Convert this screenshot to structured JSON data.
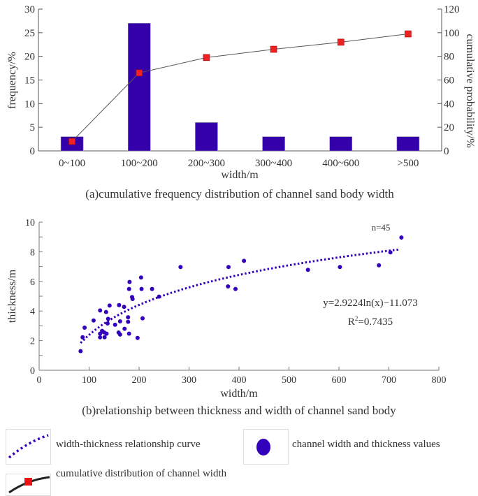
{
  "chart_data": [
    {
      "type": "bar",
      "caption": "(a)cumulative frequency distribution of channel sand body width",
      "xlabel": "width/m",
      "ylabel": "frequency/%",
      "y2label": "cumulative probability/%",
      "categories": [
        "0~100",
        "100~200",
        "200~300",
        "300~400",
        "400~600",
        ">500"
      ],
      "ylim": [
        0,
        30
      ],
      "yticks": [
        0,
        5,
        10,
        15,
        20,
        25,
        30
      ],
      "y2lim": [
        0,
        120
      ],
      "y2ticks": [
        0,
        20,
        40,
        60,
        80,
        100,
        120
      ],
      "series": [
        {
          "kind": "bar",
          "axis": "left",
          "values": [
            3,
            27,
            6,
            3,
            3,
            3
          ],
          "color": "#3300aa"
        },
        {
          "kind": "line",
          "axis": "right",
          "values": [
            8,
            66,
            79,
            86,
            92,
            99
          ],
          "color": "#ee2222"
        }
      ]
    },
    {
      "type": "scatter",
      "caption": "(b)relationship between thickness and width of channel sand body",
      "xlabel": "width/m",
      "ylabel": "thickness/m",
      "xlim": [
        0,
        800
      ],
      "ylim": [
        0,
        10
      ],
      "xticks": [
        0,
        100,
        200,
        300,
        400,
        500,
        600,
        700,
        800
      ],
      "yticks": [
        0,
        2,
        4,
        6,
        8,
        10
      ],
      "color": "#3300bb",
      "annotation_n": "n=45",
      "equation": "y=2.9224ln(x)−11.073",
      "r2_prefix": "R",
      "r2_sup": "2",
      "r2_value": "=0.7435",
      "fit": {
        "a": 2.9224,
        "b": -11.073,
        "xrange": [
          83,
          725
        ]
      },
      "points": [
        [
          83,
          1.29
        ],
        [
          87,
          2.23
        ],
        [
          91,
          2.88
        ],
        [
          109,
          3.36
        ],
        [
          122,
          4.04
        ],
        [
          141,
          4.37
        ],
        [
          134,
          3.93
        ],
        [
          138,
          3.47
        ],
        [
          137,
          3.16
        ],
        [
          126,
          2.66
        ],
        [
          130,
          2.56
        ],
        [
          135,
          2.47
        ],
        [
          122,
          2.47
        ],
        [
          122,
          2.22
        ],
        [
          131,
          2.23
        ],
        [
          152,
          3.07
        ],
        [
          160,
          4.4
        ],
        [
          170,
          4.28
        ],
        [
          162,
          3.3
        ],
        [
          159,
          2.55
        ],
        [
          162,
          2.41
        ],
        [
          171,
          2.8
        ],
        [
          178,
          3.58
        ],
        [
          178,
          3.27
        ],
        [
          180,
          2.47
        ],
        [
          181,
          5.96
        ],
        [
          180,
          5.49
        ],
        [
          186,
          4.94
        ],
        [
          187,
          4.81
        ],
        [
          197,
          2.18
        ],
        [
          204,
          6.26
        ],
        [
          205,
          5.49
        ],
        [
          207,
          3.51
        ],
        [
          226,
          5.49
        ],
        [
          240,
          4.97
        ],
        [
          283,
          6.97
        ],
        [
          379,
          6.97
        ],
        [
          378,
          5.66
        ],
        [
          393,
          5.49
        ],
        [
          410,
          7.39
        ],
        [
          538,
          6.78
        ],
        [
          602,
          6.97
        ],
        [
          680,
          7.09
        ],
        [
          703,
          7.96
        ],
        [
          725,
          8.96
        ]
      ]
    }
  ],
  "legend": {
    "curve": "width-thickness relationship curve",
    "points": "channel width and thickness values",
    "cumulative": "cumulative distribution of channel width"
  }
}
